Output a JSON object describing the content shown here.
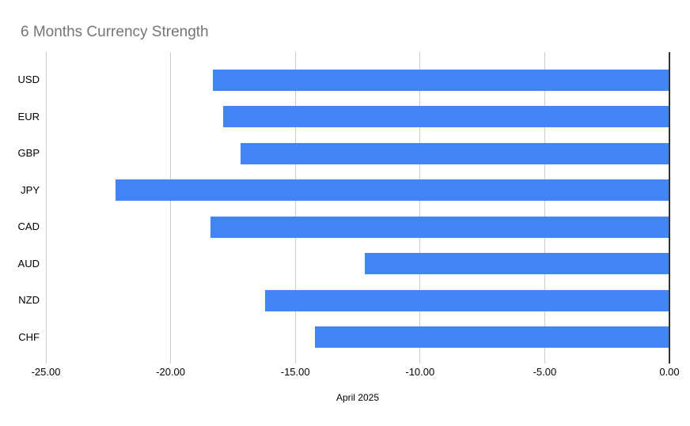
{
  "chart_data": {
    "type": "bar",
    "orientation": "horizontal",
    "title": "6 Months Currency Strength",
    "categories": [
      "USD",
      "EUR",
      "GBP",
      "JPY",
      "CAD",
      "AUD",
      "NZD",
      "CHF"
    ],
    "values": [
      -18.3,
      -17.9,
      -17.2,
      -22.2,
      -18.4,
      -12.2,
      -16.2,
      -14.2
    ],
    "xlabel": "April 2025",
    "ylabel": "",
    "xlim": [
      -25,
      0
    ],
    "x_ticks": [
      -25,
      -20,
      -15,
      -10,
      -5,
      0
    ],
    "x_tick_labels": [
      "-25.00",
      "-20.00",
      "-15.00",
      "-10.00",
      "-5.00",
      "0.00"
    ],
    "grid": true,
    "legend": "none",
    "colors": {
      "bar": "#4285f4",
      "title": "#757575",
      "axis_text": "#000000",
      "gridline": "#cccccc",
      "baseline": "#333333",
      "background": "#ffffff"
    }
  }
}
